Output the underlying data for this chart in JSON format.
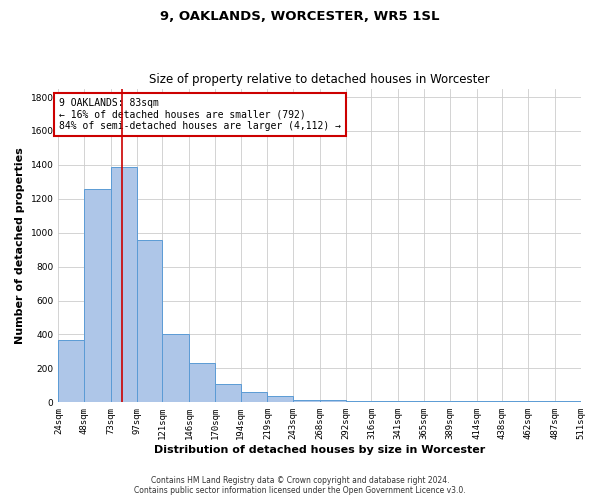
{
  "title": "9, OAKLANDS, WORCESTER, WR5 1SL",
  "subtitle": "Size of property relative to detached houses in Worcester",
  "xlabel": "Distribution of detached houses by size in Worcester",
  "ylabel": "Number of detached properties",
  "footnote1": "Contains HM Land Registry data © Crown copyright and database right 2024.",
  "footnote2": "Contains public sector information licensed under the Open Government Licence v3.0.",
  "annotation_line1": "9 OAKLANDS: 83sqm",
  "annotation_line2": "← 16% of detached houses are smaller (792)",
  "annotation_line3": "84% of semi-detached houses are larger (4,112) →",
  "property_size": 83,
  "bar_color": "#aec6e8",
  "bar_edge_color": "#5b9bd5",
  "vline_color": "#cc0000",
  "annotation_box_color": "#cc0000",
  "bin_edges": [
    24,
    48,
    73,
    97,
    121,
    146,
    170,
    194,
    219,
    243,
    268,
    292,
    316,
    341,
    365,
    389,
    414,
    438,
    462,
    487,
    511
  ],
  "bar_heights": [
    370,
    1260,
    1390,
    960,
    400,
    230,
    110,
    60,
    40,
    15,
    15,
    10,
    5,
    5,
    5,
    5,
    5,
    5,
    5,
    5
  ],
  "ylim": [
    0,
    1850
  ],
  "yticks": [
    0,
    200,
    400,
    600,
    800,
    1000,
    1200,
    1400,
    1600,
    1800
  ],
  "grid_color": "#cccccc",
  "bg_color": "#ffffff",
  "title_fontsize": 9.5,
  "subtitle_fontsize": 8.5,
  "ylabel_fontsize": 8,
  "xlabel_fontsize": 8,
  "tick_fontsize": 6.5,
  "annotation_fontsize": 7,
  "footnote_fontsize": 5.5
}
